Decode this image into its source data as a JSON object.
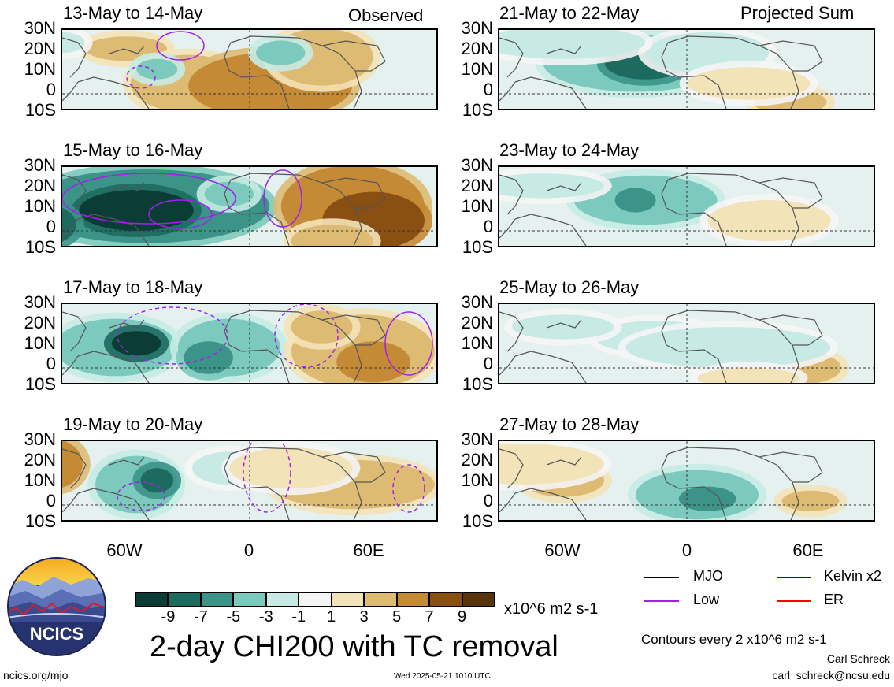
{
  "chart_data": {
    "type": "heatmap",
    "title": "2-day CHI200 with TC removal",
    "units": "x10^6 m2 s-1",
    "observed_label": "Observed",
    "projected_label": "Projected Sum",
    "lat_ticks": [
      "30N",
      "20N",
      "10N",
      "0",
      "10S"
    ],
    "lon_ticks": [
      "60W",
      "0",
      "60E"
    ],
    "colorbar": {
      "ticks": [
        "-9",
        "-7",
        "-5",
        "-3",
        "-1",
        "1",
        "3",
        "5",
        "7",
        "9"
      ],
      "colors": [
        "#0b3d36",
        "#1d6a5f",
        "#3b9487",
        "#7ccabd",
        "#c7ebe4",
        "#f5f5f5",
        "#f3e3b8",
        "#ddbb73",
        "#c58a35",
        "#8a4f12",
        "#5a3409"
      ]
    },
    "panels": [
      {
        "title": "13-May to 14-May",
        "column": "observed"
      },
      {
        "title": "15-May to 16-May",
        "column": "observed"
      },
      {
        "title": "17-May to 18-May",
        "column": "observed"
      },
      {
        "title": "19-May to 20-May",
        "column": "observed"
      },
      {
        "title": "21-May to 22-May",
        "column": "projected"
      },
      {
        "title": "23-May to 24-May",
        "column": "projected"
      },
      {
        "title": "25-May to 26-May",
        "column": "projected"
      },
      {
        "title": "27-May to 28-May",
        "column": "projected"
      }
    ],
    "contour_legend": [
      {
        "label": "MJO",
        "color": "#000000"
      },
      {
        "label": "Kelvin x2",
        "color": "#0000ff"
      },
      {
        "label": "Low",
        "color": "#a020f0"
      },
      {
        "label": "ER",
        "color": "#ff0000"
      }
    ],
    "contour_note": "Contours every 2 x10^6 m2 s-1"
  },
  "footer": {
    "logo_text": "NCICS",
    "url": "ncics.org/mjo",
    "timestamp": "Wed 2025-05-21 1010 UTC",
    "author": "Carl Schreck",
    "email": "carl_schreck@ncsu.edu"
  }
}
